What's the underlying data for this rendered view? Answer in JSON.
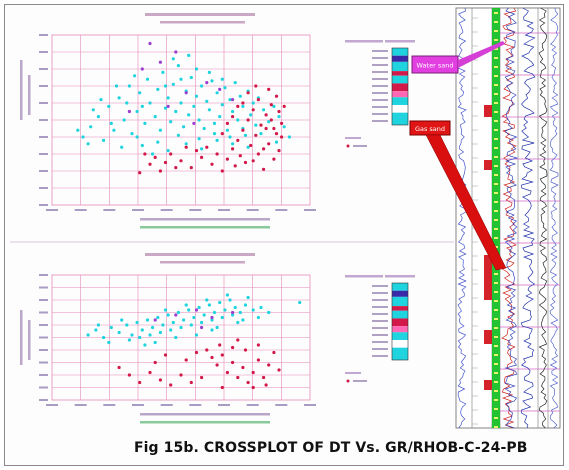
{
  "colors": {
    "grid": "#e58ab9",
    "cyan": "#1fd3df",
    "crimson": "#d21949",
    "purple": "#9b3fd0",
    "axis_text": "#8a7fb0",
    "water_box": "#cc33cc",
    "gas_box": "#dd1111",
    "log_green": "#22c232"
  },
  "annotations": {
    "water_sand": "Water sand",
    "gas_sand": "Gas sand"
  },
  "caption": "Fig 15b. CROSSPLOT OF DT Vs. GR/RHOB-C-24-PB",
  "chart_data": [
    {
      "type": "scatter",
      "title": "CROSSPLOT-DT-GR",
      "xlabel": "GR",
      "ylabel": "DT",
      "xlim": [
        0,
        1
      ],
      "ylim": [
        0,
        1
      ],
      "grid": true,
      "series": [
        {
          "color": "#1fd3df",
          "points": [
            [
              0.12,
              0.4
            ],
            [
              0.15,
              0.46
            ],
            [
              0.18,
              0.52
            ],
            [
              0.2,
              0.38
            ],
            [
              0.22,
              0.58
            ],
            [
              0.24,
              0.44
            ],
            [
              0.26,
              0.63
            ],
            [
              0.28,
              0.5
            ],
            [
              0.3,
              0.7
            ],
            [
              0.31,
              0.42
            ],
            [
              0.33,
              0.55
            ],
            [
              0.34,
              0.66
            ],
            [
              0.36,
              0.48
            ],
            [
              0.37,
              0.74
            ],
            [
              0.38,
              0.6
            ],
            [
              0.4,
              0.52
            ],
            [
              0.41,
              0.68
            ],
            [
              0.42,
              0.44
            ],
            [
              0.43,
              0.78
            ],
            [
              0.44,
              0.57
            ],
            [
              0.45,
              0.63
            ],
            [
              0.46,
              0.49
            ],
            [
              0.47,
              0.71
            ],
            [
              0.48,
              0.55
            ],
            [
              0.49,
              0.82
            ],
            [
              0.5,
              0.6
            ],
            [
              0.51,
              0.46
            ],
            [
              0.52,
              0.67
            ],
            [
              0.53,
              0.53
            ],
            [
              0.54,
              0.75
            ],
            [
              0.55,
              0.58
            ],
            [
              0.56,
              0.64
            ],
            [
              0.57,
              0.5
            ],
            [
              0.58,
              0.7
            ],
            [
              0.59,
              0.45
            ],
            [
              0.6,
              0.61
            ],
            [
              0.61,
              0.56
            ],
            [
              0.62,
              0.73
            ],
            [
              0.63,
              0.48
            ],
            [
              0.64,
              0.66
            ],
            [
              0.65,
              0.52
            ],
            [
              0.66,
              0.59
            ],
            [
              0.67,
              0.69
            ],
            [
              0.68,
              0.44
            ],
            [
              0.69,
              0.62
            ],
            [
              0.7,
              0.55
            ],
            [
              0.71,
              0.72
            ],
            [
              0.72,
              0.5
            ],
            [
              0.73,
              0.64
            ],
            [
              0.74,
              0.58
            ],
            [
              0.75,
              0.41
            ],
            [
              0.76,
              0.67
            ],
            [
              0.77,
              0.53
            ],
            [
              0.78,
              0.6
            ],
            [
              0.79,
              0.47
            ],
            [
              0.8,
              0.63
            ],
            [
              0.82,
              0.56
            ],
            [
              0.84,
              0.49
            ],
            [
              0.86,
              0.58
            ],
            [
              0.88,
              0.52
            ],
            [
              0.35,
              0.35
            ],
            [
              0.39,
              0.3
            ],
            [
              0.45,
              0.32
            ],
            [
              0.52,
              0.36
            ],
            [
              0.58,
              0.33
            ],
            [
              0.64,
              0.38
            ],
            [
              0.7,
              0.36
            ],
            [
              0.76,
              0.34
            ],
            [
              0.27,
              0.34
            ],
            [
              0.33,
              0.4
            ],
            [
              0.41,
              0.37
            ],
            [
              0.49,
              0.41
            ],
            [
              0.57,
              0.39
            ],
            [
              0.63,
              0.42
            ],
            [
              0.69,
              0.4
            ],
            [
              0.74,
              0.45
            ],
            [
              0.81,
              0.42
            ],
            [
              0.23,
              0.48
            ],
            [
              0.29,
              0.6
            ],
            [
              0.35,
              0.58
            ],
            [
              0.44,
              0.7
            ],
            [
              0.5,
              0.74
            ],
            [
              0.56,
              0.8
            ],
            [
              0.61,
              0.78
            ],
            [
              0.66,
              0.74
            ],
            [
              0.19,
              0.62
            ],
            [
              0.25,
              0.7
            ],
            [
              0.32,
              0.76
            ],
            [
              0.47,
              0.86
            ],
            [
              0.53,
              0.88
            ],
            [
              0.16,
              0.56
            ],
            [
              0.14,
              0.36
            ],
            [
              0.1,
              0.44
            ],
            [
              0.9,
              0.46
            ],
            [
              0.92,
              0.4
            ],
            [
              0.87,
              0.37
            ]
          ]
        },
        {
          "color": "#d21949",
          "points": [
            [
              0.46,
              0.3
            ],
            [
              0.5,
              0.26
            ],
            [
              0.54,
              0.22
            ],
            [
              0.58,
              0.28
            ],
            [
              0.6,
              0.34
            ],
            [
              0.62,
              0.24
            ],
            [
              0.64,
              0.3
            ],
            [
              0.66,
              0.2
            ],
            [
              0.68,
              0.27
            ],
            [
              0.7,
              0.33
            ],
            [
              0.71,
              0.23
            ],
            [
              0.72,
              0.38
            ],
            [
              0.73,
              0.29
            ],
            [
              0.74,
              0.44
            ],
            [
              0.75,
              0.25
            ],
            [
              0.76,
              0.5
            ],
            [
              0.77,
              0.35
            ],
            [
              0.78,
              0.56
            ],
            [
              0.79,
              0.41
            ],
            [
              0.8,
              0.62
            ],
            [
              0.81,
              0.47
            ],
            [
              0.82,
              0.33
            ],
            [
              0.83,
              0.53
            ],
            [
              0.84,
              0.68
            ],
            [
              0.85,
              0.59
            ],
            [
              0.86,
              0.45
            ],
            [
              0.87,
              0.64
            ],
            [
              0.88,
              0.55
            ],
            [
              0.89,
              0.4
            ],
            [
              0.9,
              0.58
            ],
            [
              0.78,
              0.26
            ],
            [
              0.8,
              0.3
            ],
            [
              0.82,
              0.21
            ],
            [
              0.84,
              0.36
            ],
            [
              0.86,
              0.27
            ],
            [
              0.88,
              0.32
            ],
            [
              0.56,
              0.32
            ],
            [
              0.52,
              0.34
            ],
            [
              0.48,
              0.22
            ],
            [
              0.44,
              0.25
            ],
            [
              0.4,
              0.28
            ],
            [
              0.42,
              0.2
            ],
            [
              0.38,
              0.24
            ],
            [
              0.36,
              0.3
            ],
            [
              0.34,
              0.19
            ],
            [
              0.66,
              0.42
            ],
            [
              0.68,
              0.48
            ],
            [
              0.7,
              0.52
            ],
            [
              0.72,
              0.58
            ],
            [
              0.74,
              0.6
            ],
            [
              0.76,
              0.66
            ],
            [
              0.79,
              0.7
            ],
            [
              0.83,
              0.45
            ],
            [
              0.85,
              0.5
            ],
            [
              0.87,
              0.42
            ],
            [
              0.89,
              0.48
            ]
          ]
        },
        {
          "color": "#9b3fd0",
          "points": [
            [
              0.38,
              0.95
            ],
            [
              0.52,
              0.66
            ],
            [
              0.6,
              0.72
            ],
            [
              0.45,
              0.58
            ],
            [
              0.7,
              0.62
            ],
            [
              0.35,
              0.8
            ],
            [
              0.42,
              0.84
            ],
            [
              0.55,
              0.48
            ],
            [
              0.3,
              0.55
            ],
            [
              0.48,
              0.9
            ],
            [
              0.65,
              0.68
            ]
          ]
        }
      ]
    },
    {
      "type": "scatter",
      "title": "CROSSPLOT-DT-RHOB",
      "xlabel": "RHOB",
      "ylabel": "DT",
      "xlim": [
        0,
        1
      ],
      "ylim": [
        0,
        1
      ],
      "grid": true,
      "series": [
        {
          "color": "#1fd3df",
          "points": [
            [
              0.14,
              0.52
            ],
            [
              0.17,
              0.56
            ],
            [
              0.2,
              0.5
            ],
            [
              0.23,
              0.58
            ],
            [
              0.26,
              0.54
            ],
            [
              0.29,
              0.6
            ],
            [
              0.31,
              0.52
            ],
            [
              0.33,
              0.62
            ],
            [
              0.35,
              0.56
            ],
            [
              0.37,
              0.64
            ],
            [
              0.39,
              0.58
            ],
            [
              0.41,
              0.66
            ],
            [
              0.43,
              0.6
            ],
            [
              0.45,
              0.68
            ],
            [
              0.47,
              0.62
            ],
            [
              0.49,
              0.7
            ],
            [
              0.51,
              0.64
            ],
            [
              0.53,
              0.72
            ],
            [
              0.55,
              0.66
            ],
            [
              0.57,
              0.74
            ],
            [
              0.59,
              0.68
            ],
            [
              0.61,
              0.76
            ],
            [
              0.63,
              0.7
            ],
            [
              0.65,
              0.78
            ],
            [
              0.67,
              0.72
            ],
            [
              0.69,
              0.8
            ],
            [
              0.71,
              0.74
            ],
            [
              0.73,
              0.7
            ],
            [
              0.75,
              0.76
            ],
            [
              0.78,
              0.72
            ],
            [
              0.81,
              0.74
            ],
            [
              0.84,
              0.7
            ],
            [
              0.3,
              0.48
            ],
            [
              0.34,
              0.5
            ],
            [
              0.38,
              0.52
            ],
            [
              0.42,
              0.54
            ],
            [
              0.46,
              0.56
            ],
            [
              0.5,
              0.58
            ],
            [
              0.54,
              0.6
            ],
            [
              0.58,
              0.62
            ],
            [
              0.62,
              0.64
            ],
            [
              0.66,
              0.66
            ],
            [
              0.7,
              0.68
            ],
            [
              0.74,
              0.64
            ],
            [
              0.22,
              0.46
            ],
            [
              0.27,
              0.64
            ],
            [
              0.44,
              0.72
            ],
            [
              0.52,
              0.76
            ],
            [
              0.6,
              0.8
            ],
            [
              0.68,
              0.84
            ],
            [
              0.76,
              0.82
            ],
            [
              0.18,
              0.6
            ],
            [
              0.36,
              0.44
            ],
            [
              0.56,
              0.52
            ],
            [
              0.64,
              0.58
            ],
            [
              0.72,
              0.62
            ],
            [
              0.8,
              0.66
            ],
            [
              0.48,
              0.5
            ],
            [
              0.4,
              0.46
            ],
            [
              0.62,
              0.56
            ],
            [
              0.96,
              0.78
            ]
          ]
        },
        {
          "color": "#d21949",
          "points": [
            [
              0.6,
              0.4
            ],
            [
              0.62,
              0.34
            ],
            [
              0.64,
              0.28
            ],
            [
              0.66,
              0.36
            ],
            [
              0.68,
              0.22
            ],
            [
              0.7,
              0.3
            ],
            [
              0.72,
              0.18
            ],
            [
              0.74,
              0.26
            ],
            [
              0.76,
              0.14
            ],
            [
              0.78,
              0.22
            ],
            [
              0.8,
              0.32
            ],
            [
              0.82,
              0.18
            ],
            [
              0.84,
              0.28
            ],
            [
              0.86,
              0.38
            ],
            [
              0.65,
              0.44
            ],
            [
              0.7,
              0.42
            ],
            [
              0.75,
              0.4
            ],
            [
              0.8,
              0.44
            ],
            [
              0.3,
              0.2
            ],
            [
              0.34,
              0.14
            ],
            [
              0.38,
              0.22
            ],
            [
              0.42,
              0.16
            ],
            [
              0.46,
              0.12
            ],
            [
              0.5,
              0.2
            ],
            [
              0.54,
              0.14
            ],
            [
              0.58,
              0.18
            ],
            [
              0.26,
              0.26
            ],
            [
              0.4,
              0.3
            ],
            [
              0.44,
              0.36
            ],
            [
              0.52,
              0.32
            ],
            [
              0.56,
              0.38
            ],
            [
              0.72,
              0.48
            ],
            [
              0.78,
              0.1
            ],
            [
              0.83,
              0.12
            ],
            [
              0.66,
              0.1
            ],
            [
              0.88,
              0.24
            ]
          ]
        },
        {
          "color": "#9b3fd0",
          "points": [
            [
              0.48,
              0.68
            ],
            [
              0.56,
              0.72
            ],
            [
              0.62,
              0.66
            ],
            [
              0.7,
              0.7
            ],
            [
              0.4,
              0.64
            ],
            [
              0.58,
              0.58
            ]
          ]
        }
      ]
    }
  ]
}
